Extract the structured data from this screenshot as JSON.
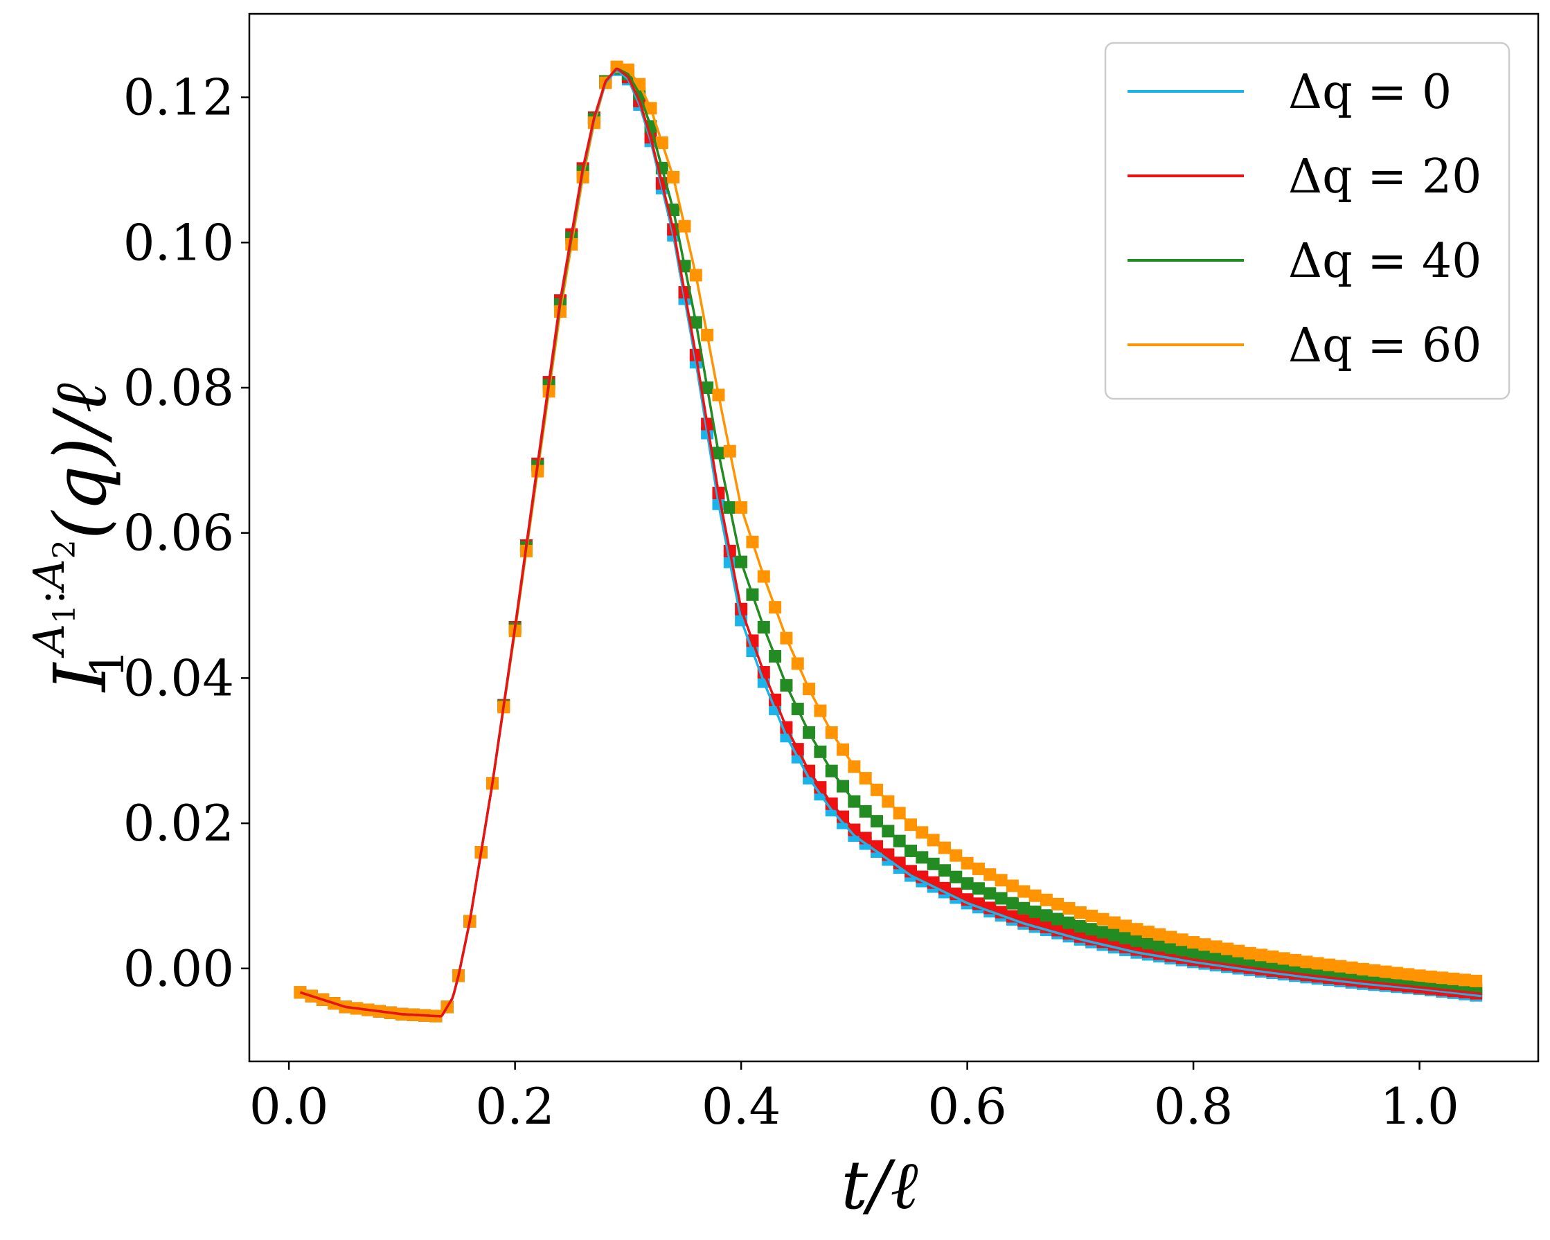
{
  "chart_data": {
    "type": "line",
    "xlabel": "t/ℓ",
    "ylabel": "I₁^{A₁:A₂}(q)/ℓ",
    "ylabel_parts": {
      "base": "I",
      "sub": "1",
      "sup": "A",
      "sup_sub1": "1",
      "sup_colon": ":",
      "sup_sub2": "2",
      "tail": "(q)/ℓ"
    },
    "xlim": [
      -0.035,
      1.105
    ],
    "ylim": [
      -0.0128,
      0.1315
    ],
    "xticks": [
      0.0,
      0.2,
      0.4,
      0.6,
      0.8,
      1.0
    ],
    "xtick_labels": [
      "0.0",
      "0.2",
      "0.4",
      "0.6",
      "0.8",
      "1.0"
    ],
    "yticks": [
      0.0,
      0.02,
      0.04,
      0.06,
      0.08,
      0.1,
      0.12
    ],
    "ytick_labels": [
      "0.00",
      "0.02",
      "0.04",
      "0.06",
      "0.08",
      "0.10",
      "0.12"
    ],
    "grid": false,
    "legend_position": "top-right",
    "markers": "square",
    "series": [
      {
        "name": "Δq = 0",
        "color": "#1bb3ea",
        "points": [
          [
            0.01,
            -0.0033
          ],
          [
            0.05,
            -0.0053
          ],
          [
            0.1,
            -0.0063
          ],
          [
            0.135,
            -0.0066
          ],
          [
            0.145,
            -0.004
          ],
          [
            0.15,
            -0.001
          ],
          [
            0.16,
            0.0065
          ],
          [
            0.18,
            0.0255
          ],
          [
            0.2,
            0.047
          ],
          [
            0.22,
            0.0695
          ],
          [
            0.24,
            0.092
          ],
          [
            0.26,
            0.11
          ],
          [
            0.27,
            0.117
          ],
          [
            0.28,
            0.122
          ],
          [
            0.29,
            0.1238
          ],
          [
            0.3,
            0.1225
          ],
          [
            0.31,
            0.119
          ],
          [
            0.32,
            0.114
          ],
          [
            0.34,
            0.101
          ],
          [
            0.36,
            0.0835
          ],
          [
            0.38,
            0.064
          ],
          [
            0.4,
            0.048
          ],
          [
            0.42,
            0.0395
          ],
          [
            0.44,
            0.032
          ],
          [
            0.46,
            0.0262
          ],
          [
            0.48,
            0.0218
          ],
          [
            0.5,
            0.0183
          ],
          [
            0.55,
            0.0128
          ],
          [
            0.6,
            0.009
          ],
          [
            0.65,
            0.0062
          ],
          [
            0.7,
            0.004
          ],
          [
            0.75,
            0.0022
          ],
          [
            0.8,
            0.0009
          ],
          [
            0.85,
            -0.0002
          ],
          [
            0.9,
            -0.0012
          ],
          [
            0.95,
            -0.0021
          ],
          [
            1.0,
            -0.0028
          ],
          [
            1.055,
            -0.0038
          ]
        ]
      },
      {
        "name": "Δq = 20",
        "color": "#ee1111",
        "points": [
          [
            0.01,
            -0.0033
          ],
          [
            0.05,
            -0.0053
          ],
          [
            0.1,
            -0.0063
          ],
          [
            0.135,
            -0.0066
          ],
          [
            0.145,
            -0.004
          ],
          [
            0.15,
            -0.001
          ],
          [
            0.16,
            0.0065
          ],
          [
            0.18,
            0.0255
          ],
          [
            0.2,
            0.047
          ],
          [
            0.22,
            0.0695
          ],
          [
            0.24,
            0.092
          ],
          [
            0.26,
            0.1102
          ],
          [
            0.27,
            0.1172
          ],
          [
            0.28,
            0.1222
          ],
          [
            0.29,
            0.124
          ],
          [
            0.3,
            0.1228
          ],
          [
            0.31,
            0.1195
          ],
          [
            0.32,
            0.1145
          ],
          [
            0.34,
            0.1018
          ],
          [
            0.36,
            0.0845
          ],
          [
            0.38,
            0.0655
          ],
          [
            0.4,
            0.0495
          ],
          [
            0.42,
            0.0408
          ],
          [
            0.44,
            0.0332
          ],
          [
            0.46,
            0.0272
          ],
          [
            0.48,
            0.0227
          ],
          [
            0.5,
            0.0191
          ],
          [
            0.55,
            0.0134
          ],
          [
            0.6,
            0.0095
          ],
          [
            0.65,
            0.0066
          ],
          [
            0.7,
            0.0044
          ],
          [
            0.75,
            0.0026
          ],
          [
            0.8,
            0.0012
          ],
          [
            0.85,
            0.0001
          ],
          [
            0.9,
            -0.0009
          ],
          [
            0.95,
            -0.0018
          ],
          [
            1.0,
            -0.0026
          ],
          [
            1.055,
            -0.0035
          ]
        ]
      },
      {
        "name": "Δq = 40",
        "color": "#228b22",
        "points": [
          [
            0.01,
            -0.0033
          ],
          [
            0.05,
            -0.0053
          ],
          [
            0.1,
            -0.0063
          ],
          [
            0.135,
            -0.0066
          ],
          [
            0.145,
            -0.004
          ],
          [
            0.15,
            -0.001
          ],
          [
            0.16,
            0.0065
          ],
          [
            0.18,
            0.0255
          ],
          [
            0.2,
            0.0468
          ],
          [
            0.22,
            0.0692
          ],
          [
            0.24,
            0.0915
          ],
          [
            0.26,
            0.1098
          ],
          [
            0.27,
            0.117
          ],
          [
            0.28,
            0.1222
          ],
          [
            0.29,
            0.124
          ],
          [
            0.3,
            0.1232
          ],
          [
            0.31,
            0.1205
          ],
          [
            0.32,
            0.116
          ],
          [
            0.34,
            0.1045
          ],
          [
            0.36,
            0.089
          ],
          [
            0.38,
            0.071
          ],
          [
            0.4,
            0.056
          ],
          [
            0.42,
            0.047
          ],
          [
            0.44,
            0.039
          ],
          [
            0.46,
            0.0325
          ],
          [
            0.48,
            0.0272
          ],
          [
            0.5,
            0.023
          ],
          [
            0.55,
            0.0162
          ],
          [
            0.6,
            0.0117
          ],
          [
            0.65,
            0.0083
          ],
          [
            0.7,
            0.0058
          ],
          [
            0.75,
            0.0038
          ],
          [
            0.8,
            0.0022
          ],
          [
            0.85,
            0.0009
          ],
          [
            0.9,
            -0.0002
          ],
          [
            0.95,
            -0.0012
          ],
          [
            1.0,
            -0.002
          ],
          [
            1.055,
            -0.003
          ]
        ]
      },
      {
        "name": "Δq = 60",
        "color": "#ff9400",
        "points": [
          [
            0.01,
            -0.0033
          ],
          [
            0.05,
            -0.0053
          ],
          [
            0.1,
            -0.0063
          ],
          [
            0.135,
            -0.0066
          ],
          [
            0.145,
            -0.004
          ],
          [
            0.15,
            -0.001
          ],
          [
            0.16,
            0.0065
          ],
          [
            0.18,
            0.0255
          ],
          [
            0.2,
            0.0465
          ],
          [
            0.22,
            0.0685
          ],
          [
            0.24,
            0.0905
          ],
          [
            0.26,
            0.109
          ],
          [
            0.27,
            0.1165
          ],
          [
            0.28,
            0.122
          ],
          [
            0.29,
            0.1242
          ],
          [
            0.3,
            0.1238
          ],
          [
            0.31,
            0.1218
          ],
          [
            0.32,
            0.1185
          ],
          [
            0.34,
            0.109
          ],
          [
            0.36,
            0.0955
          ],
          [
            0.38,
            0.079
          ],
          [
            0.4,
            0.0635
          ],
          [
            0.42,
            0.054
          ],
          [
            0.44,
            0.0455
          ],
          [
            0.46,
            0.0385
          ],
          [
            0.48,
            0.0325
          ],
          [
            0.5,
            0.0278
          ],
          [
            0.55,
            0.0198
          ],
          [
            0.6,
            0.0145
          ],
          [
            0.65,
            0.0106
          ],
          [
            0.7,
            0.0077
          ],
          [
            0.75,
            0.0054
          ],
          [
            0.8,
            0.0036
          ],
          [
            0.85,
            0.0021
          ],
          [
            0.9,
            0.0009
          ],
          [
            0.95,
            -0.0001
          ],
          [
            1.0,
            -0.001
          ],
          [
            1.055,
            -0.0018
          ]
        ]
      }
    ]
  }
}
